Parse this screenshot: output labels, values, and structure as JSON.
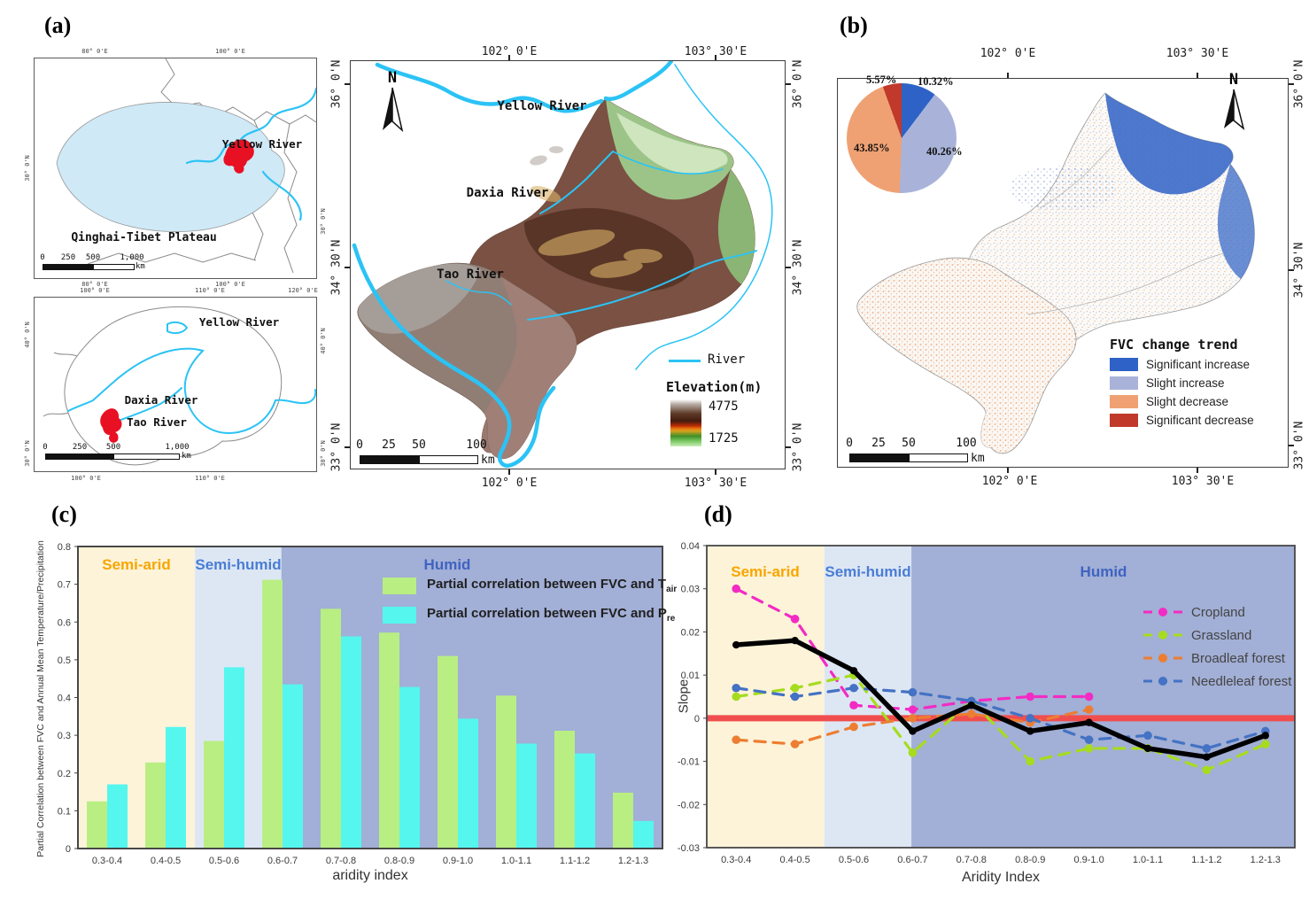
{
  "panel_a": {
    "label": "(a)",
    "inset_top": {
      "axis_top": [
        "80° 0'E",
        "100° 0'E"
      ],
      "axis_bottom": [
        "80° 0'E",
        "100° 0'E"
      ],
      "axis_left": [
        "30° 0'N"
      ],
      "axis_right": [
        "30° 0'N"
      ],
      "river_label": "Yellow River",
      "region_label": "Qinghai-Tibet Plateau",
      "scalebar": {
        "ticks": [
          "0",
          "250",
          "500",
          "1,000"
        ],
        "unit": "km"
      }
    },
    "inset_bottom": {
      "axis_top": [
        "100° 0'E",
        "110° 0'E",
        "120° 0'E"
      ],
      "axis_bottom": [
        "100° 0'E",
        "110° 0'E"
      ],
      "axis_left": [
        "40° 0'N",
        "30° 0'N"
      ],
      "axis_right": [
        "40° 0'N",
        "30° 0'N"
      ],
      "labels": {
        "yellow": "Yellow River",
        "daxia": "Daxia River",
        "tao": "Tao River"
      },
      "scalebar": {
        "ticks": [
          "0",
          "250",
          "500",
          "1,000"
        ],
        "unit": "km"
      }
    },
    "main_map": {
      "north": "N",
      "rivers": {
        "yellow": "Yellow River",
        "daxia": "Daxia River",
        "tao": "Tao River"
      },
      "axis_top": [
        "102° 0'E",
        "103° 30'E"
      ],
      "axis_bottom": [
        "102° 0'E",
        "103° 30'E"
      ],
      "axis_left": [
        "36° 0'N",
        "34° 30'N",
        "33° 0'N"
      ],
      "axis_right": [
        "36° 0'N",
        "34° 30'N",
        "33° 0'N"
      ],
      "legend": {
        "river": "River",
        "elevation_title": "Elevation(m)",
        "elevation_max": "4775",
        "elevation_min": "1725"
      },
      "scalebar": {
        "ticks": [
          "0",
          "25",
          "50",
          "100"
        ],
        "unit": "km"
      }
    }
  },
  "panel_b": {
    "label": "(b)",
    "north": "N",
    "pie": {
      "slices": [
        {
          "label": "10.32%",
          "value": 10.32,
          "color": "#2e62c6",
          "category": "Significant increase"
        },
        {
          "label": "40.26%",
          "value": 40.26,
          "color": "#a9b3d9",
          "category": "Slight increase"
        },
        {
          "label": "43.85%",
          "value": 43.85,
          "color": "#efa173",
          "category": "Slight decrease"
        },
        {
          "label": "5.57%",
          "value": 5.57,
          "color": "#c0392b",
          "category": "Significant decrease"
        }
      ]
    },
    "legend": {
      "title": "FVC change trend",
      "items": [
        {
          "label": "Significant increase",
          "color": "#2e62c6"
        },
        {
          "label": "Slight increase",
          "color": "#a9b3d9"
        },
        {
          "label": "Slight decrease",
          "color": "#efa173"
        },
        {
          "label": "Significant decrease",
          "color": "#c0392b"
        }
      ]
    },
    "axis_top": [
      "102° 0'E",
      "103° 30'E"
    ],
    "axis_bottom": [
      "102° 0'E",
      "103° 30'E"
    ],
    "axis_right": [
      "36° 0'N",
      "34° 30'N",
      "33° 0'N"
    ],
    "scalebar": {
      "ticks": [
        "0",
        "25",
        "50",
        "100"
      ],
      "unit": "km"
    }
  },
  "chart_data": [
    {
      "id": "panel_c",
      "type": "bar",
      "panel_label": "(c)",
      "categories": [
        "0.3-0.4",
        "0.4-0.5",
        "0.5-0.6",
        "0.6-0.7",
        "0.7-0.8",
        "0.8-0.9",
        "0.9-1.0",
        "1.0-1.1",
        "1.1-1.2",
        "1.2-1.3"
      ],
      "series": [
        {
          "name": "Partial correlation between FVC and T",
          "name_sub": "air",
          "color": "#b9ee83",
          "values": [
            0.125,
            0.228,
            0.285,
            0.712,
            0.635,
            0.572,
            0.51,
            0.405,
            0.312,
            0.148
          ]
        },
        {
          "name": "Partial correlation between FVC and P",
          "name_sub": "re",
          "color": "#55f6ee",
          "values": [
            0.17,
            0.322,
            0.48,
            0.435,
            0.562,
            0.428,
            0.344,
            0.278,
            0.252,
            0.073
          ]
        }
      ],
      "xlabel": "aridity index",
      "ylabel": "Partial Correlation between FVC and Annual Mean Temperature/Precipitation",
      "ylim": [
        0,
        0.8
      ],
      "ytick_step": 0.1,
      "grid": false,
      "legend_position": "top-right",
      "zones": [
        {
          "label": "Semi-arid",
          "from": 0,
          "to": 0.2,
          "fill": "#fdf3d8",
          "text_color": "#f7a600"
        },
        {
          "label": "Semi-humid",
          "from": 0.2,
          "to": 0.348,
          "fill": "#dde7f4",
          "text_color": "#4a7dd4"
        },
        {
          "label": "Humid",
          "from": 0.348,
          "to": 1,
          "fill": "#a2afd6",
          "text_color": "#3f63c0"
        }
      ]
    },
    {
      "id": "panel_d",
      "type": "line",
      "panel_label": "(d)",
      "categories": [
        "0.3-0.4",
        "0.4-0.5",
        "0.5-0.6",
        "0.6-0.7",
        "0.7-0.8",
        "0.8-0.9",
        "0.9-1.0",
        "1.0-1.1",
        "1.1-1.2",
        "1.2-1.3"
      ],
      "series": [
        {
          "name": "Cropland",
          "color": "#f32bc4",
          "dashed": true,
          "values": [
            0.03,
            0.023,
            0.003,
            0.002,
            0.004,
            0.005,
            0.005,
            null,
            null,
            null
          ]
        },
        {
          "name": "Grassland",
          "color": "#a6dc1e",
          "dashed": true,
          "values": [
            0.005,
            0.007,
            0.01,
            -0.008,
            0.004,
            -0.01,
            -0.007,
            -0.007,
            -0.012,
            -0.006
          ]
        },
        {
          "name": "Broadleaf forest",
          "color": "#ed7d31",
          "dashed": true,
          "values": [
            -0.005,
            -0.006,
            -0.002,
            0.0,
            0.001,
            -0.001,
            0.002,
            null,
            null,
            null
          ]
        },
        {
          "name": "Needleleaf forest",
          "color": "#4472c4",
          "dashed": true,
          "values": [
            0.007,
            0.005,
            0.007,
            0.006,
            0.004,
            0.0,
            -0.005,
            -0.004,
            -0.007,
            -0.003
          ]
        },
        {
          "name": "",
          "color": "#000000",
          "dashed": false,
          "in_legend": false,
          "values": [
            0.017,
            0.018,
            0.011,
            -0.003,
            0.003,
            -0.003,
            -0.001,
            -0.007,
            -0.009,
            -0.004
          ]
        }
      ],
      "baseline": {
        "value": 0,
        "color": "#f04e4e"
      },
      "xlabel": "Aridity Index",
      "ylabel": "Slope",
      "ylim": [
        -0.03,
        0.04
      ],
      "ytick_step": 0.01,
      "grid": false,
      "zones": [
        {
          "label": "Semi-arid",
          "from": 0,
          "to": 0.2,
          "fill": "#fdf3d8",
          "text_color": "#f7a600"
        },
        {
          "label": "Semi-humid",
          "from": 0.2,
          "to": 0.348,
          "fill": "#dde7f4",
          "text_color": "#4a7dd4"
        },
        {
          "label": "Humid",
          "from": 0.348,
          "to": 1,
          "fill": "#a2afd6",
          "text_color": "#3f63c0"
        }
      ]
    }
  ]
}
